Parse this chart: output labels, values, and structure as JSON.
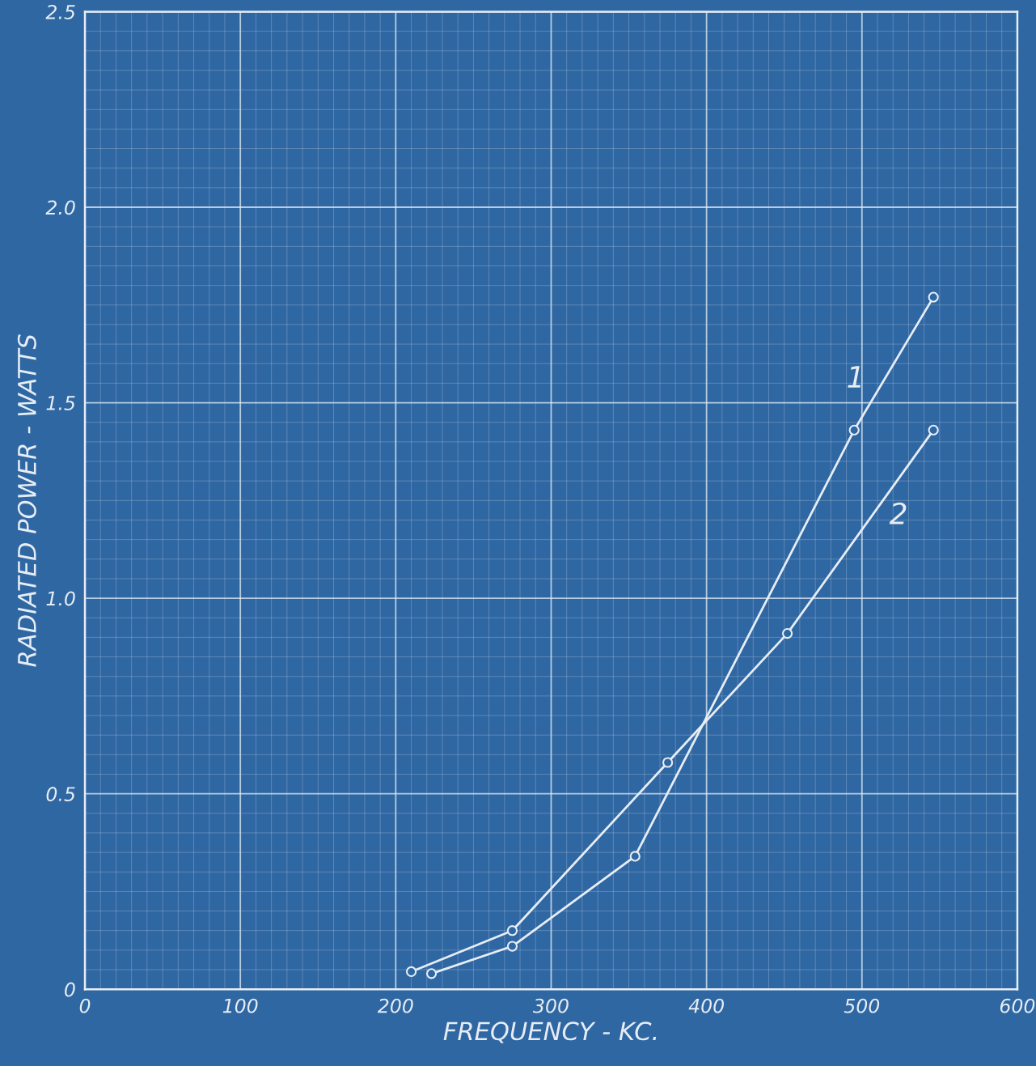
{
  "chart_data": {
    "type": "line",
    "xlabel": "FREQUENCY - KC.",
    "ylabel": "RADIATED POWER - WATTS",
    "xlim": [
      0,
      600
    ],
    "ylim": [
      0,
      2.5
    ],
    "xticks": [
      0,
      100,
      200,
      300,
      400,
      500,
      600
    ],
    "yticks": [
      0,
      0.5,
      {
        "value": 1,
        "label": "1.0"
      },
      1.5,
      {
        "value": 2,
        "label": "2.0"
      },
      2.5
    ],
    "grid": true,
    "marker": "circle",
    "line_style": "solid",
    "series": [
      {
        "name": "1",
        "color": "#e6edf5",
        "x": [
          223,
          275,
          354,
          495,
          546
        ],
        "values": [
          0.04,
          0.11,
          0.34,
          1.43,
          1.77
        ]
      },
      {
        "name": "2",
        "color": "#e6edf5",
        "x": [
          210,
          275,
          375,
          452,
          546
        ],
        "values": [
          0.045,
          0.15,
          0.58,
          0.91,
          1.43
        ]
      }
    ]
  }
}
